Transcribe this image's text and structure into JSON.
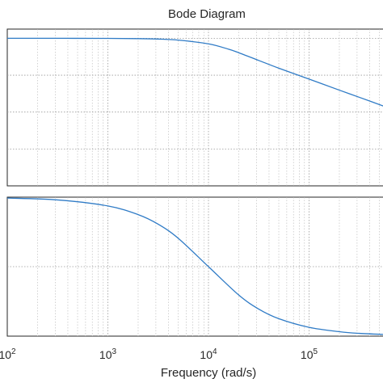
{
  "chart_data": {
    "type": "line",
    "title": "Bode Diagram",
    "xlabel": "Frequency  (rad/s)",
    "xscale": "log",
    "xlim": [
      100,
      1000000
    ],
    "xticks": [
      {
        "base": "10",
        "exp": "2"
      },
      {
        "base": "10",
        "exp": "3"
      },
      {
        "base": "10",
        "exp": "4"
      },
      {
        "base": "10",
        "exp": "5"
      }
    ],
    "grid": true,
    "panels": [
      {
        "name": "magnitude",
        "ylim": [
          -80,
          5
        ],
        "yticks": [
          0,
          -20,
          -40,
          -60,
          -80
        ],
        "x": [
          100,
          316,
          1000,
          2000,
          3162,
          5000,
          10000,
          15849,
          20000,
          31623,
          50000,
          100000,
          200000,
          316228,
          600000
        ],
        "y": [
          0,
          0,
          -0.04,
          -0.17,
          -0.4,
          -0.97,
          -3.01,
          -5.9,
          -7.8,
          -12,
          -16.2,
          -22.1,
          -28.1,
          -32,
          -37.5
        ]
      },
      {
        "name": "phase",
        "ylim": [
          -90,
          0
        ],
        "yticks": [
          0,
          -45,
          -90
        ],
        "x": [
          100,
          316,
          1000,
          2000,
          3162,
          5000,
          10000,
          20000,
          31623,
          50000,
          100000,
          200000,
          316228,
          600000
        ],
        "y": [
          -0.6,
          -1.8,
          -5.7,
          -11.3,
          -17.5,
          -26.6,
          -45,
          -63.4,
          -72.5,
          -78.7,
          -84.3,
          -87.1,
          -88.2,
          -89.0
        ]
      }
    ]
  }
}
